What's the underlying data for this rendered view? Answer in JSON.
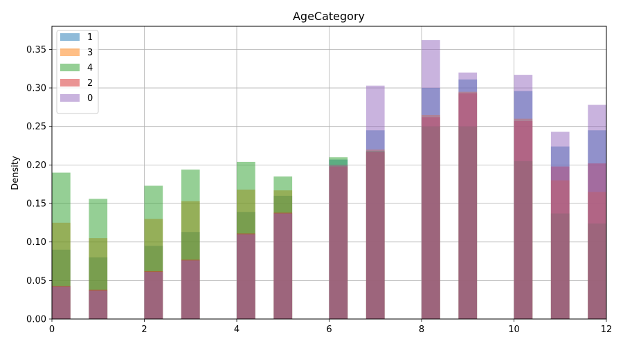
{
  "chart_data": {
    "type": "bar",
    "title": "AgeCategory",
    "xlabel": "",
    "ylabel": "Density",
    "xlim": [
      0,
      12
    ],
    "ylim": [
      0,
      0.38
    ],
    "grid": true,
    "legend_position": "top-left",
    "x_ticks": [
      0,
      2,
      4,
      6,
      8,
      10,
      12
    ],
    "y_ticks": [
      0.0,
      0.05,
      0.1,
      0.15,
      0.2,
      0.25,
      0.3,
      0.35
    ],
    "x_tick_labels": [
      "0",
      "2",
      "4",
      "6",
      "8",
      "10",
      "12"
    ],
    "y_tick_labels": [
      "0.00",
      "0.05",
      "0.10",
      "0.15",
      "0.20",
      "0.25",
      "0.30",
      "0.35"
    ],
    "bin_width": 0.4,
    "bin_starts": [
      0,
      0.8,
      2,
      2.8,
      4,
      4.8,
      6,
      6.8,
      8,
      8.8,
      10,
      10.8,
      11.6
    ],
    "series": [
      {
        "name": "1",
        "color": "#1f77b4",
        "values": [
          0.09,
          0.08,
          0.095,
          0.113,
          0.139,
          0.16,
          0.207,
          0.245,
          0.3,
          0.311,
          0.296,
          0.224,
          0.245
        ]
      },
      {
        "name": "3",
        "color": "#ff7f0e",
        "values": [
          0.125,
          0.105,
          0.13,
          0.153,
          0.168,
          0.167,
          0.2,
          0.22,
          0.265,
          0.295,
          0.26,
          0.18,
          0.165
        ]
      },
      {
        "name": "4",
        "color": "#2ca02c",
        "values": [
          0.19,
          0.156,
          0.173,
          0.194,
          0.204,
          0.185,
          0.21,
          0.218,
          0.25,
          0.25,
          0.205,
          0.137,
          0.124
        ]
      },
      {
        "name": "2",
        "color": "#d62728",
        "values": [
          0.043,
          0.038,
          0.062,
          0.077,
          0.111,
          0.138,
          0.198,
          0.217,
          0.262,
          0.293,
          0.257,
          0.198,
          0.202
        ]
      },
      {
        "name": "0",
        "color": "#9467bd",
        "values": [
          0.042,
          0.037,
          0.061,
          0.076,
          0.11,
          0.137,
          0.2,
          0.303,
          0.362,
          0.32,
          0.317,
          0.243,
          0.278
        ]
      }
    ]
  }
}
